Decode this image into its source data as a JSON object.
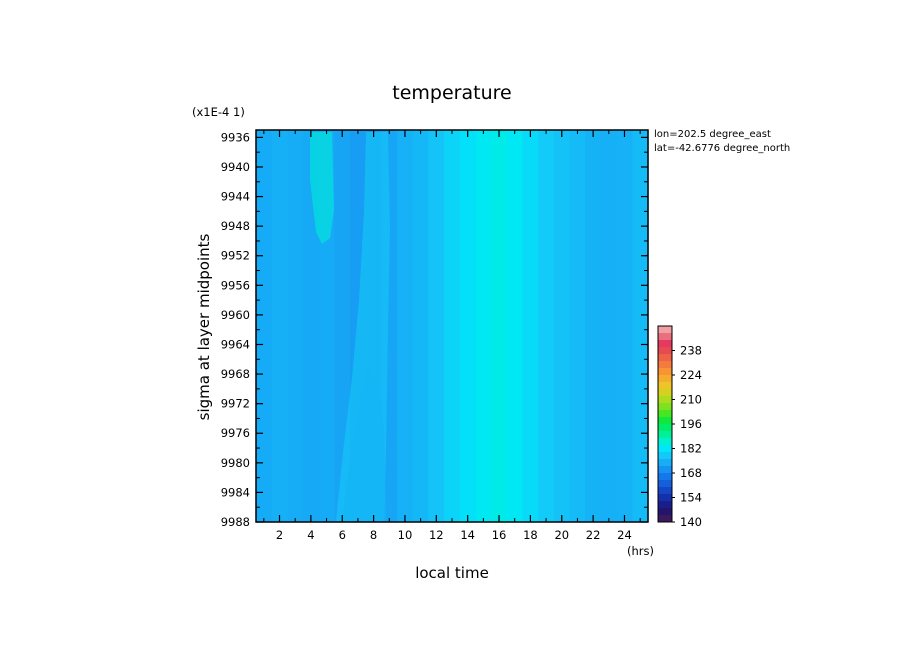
{
  "chart_data": {
    "type": "heatmap",
    "title": "temperature",
    "scale_note": "(x1E-4 1)",
    "xlabel": "local time",
    "xunit": "(hrs)",
    "ylabel": "sigma at layer midpoints",
    "x_ticks": [
      2,
      4,
      6,
      8,
      10,
      12,
      14,
      16,
      18,
      20,
      22,
      24
    ],
    "xlim": [
      0.5,
      25.5
    ],
    "y_ticks": [
      9936,
      9940,
      9944,
      9948,
      9952,
      9956,
      9960,
      9964,
      9968,
      9972,
      9976,
      9980,
      9984,
      9988
    ],
    "ylim": [
      9988,
      9935
    ],
    "annotations": [
      "lon=202.5 degree_east",
      "lat=-42.6776 degree_north"
    ],
    "colorbar": {
      "tick_labels": [
        140,
        154,
        168,
        182,
        196,
        210,
        224,
        238
      ],
      "range": [
        140,
        252
      ],
      "levels": [
        140,
        144,
        148,
        152,
        156,
        160,
        164,
        168,
        172,
        176,
        180,
        184,
        188,
        192,
        196,
        200,
        204,
        208,
        212,
        216,
        220,
        224,
        228,
        232,
        236,
        240,
        244,
        248,
        252
      ],
      "colors": [
        "#3a1a5c",
        "#24146e",
        "#1a1e8c",
        "#1430aa",
        "#1446c6",
        "#1460dc",
        "#1478ea",
        "#1892f2",
        "#16aef6",
        "#14c8f8",
        "#00e6fa",
        "#00f0d0",
        "#00f09a",
        "#00ec6a",
        "#10e83c",
        "#48e622",
        "#7ee21e",
        "#acdc1e",
        "#d4d21e",
        "#eec428",
        "#f6ac2c",
        "#f89434",
        "#f47a3e",
        "#ee6248",
        "#e84a52",
        "#e43a62",
        "#e8707e",
        "#f0a0a4"
      ]
    },
    "columns": [
      {
        "x": 1,
        "value": 171.5
      },
      {
        "x": 2,
        "value": 172.3
      },
      {
        "x": 3,
        "value": 171.9
      },
      {
        "x": 4,
        "value": 171.3
      },
      {
        "x": 5,
        "value": 171.5
      },
      {
        "x": 6,
        "value": 170.6
      },
      {
        "x": 7,
        "value": 169.6
      },
      {
        "x": 8,
        "value": 169.0
      },
      {
        "x": 9,
        "value": 170.7
      },
      {
        "x": 10,
        "value": 172.4
      },
      {
        "x": 11,
        "value": 173.6
      },
      {
        "x": 12,
        "value": 175.2
      },
      {
        "x": 13,
        "value": 177.6
      },
      {
        "x": 14,
        "value": 179.3
      },
      {
        "x": 15,
        "value": 180.8
      },
      {
        "x": 16,
        "value": 181.8
      },
      {
        "x": 17,
        "value": 180.6
      },
      {
        "x": 18,
        "value": 178.5
      },
      {
        "x": 19,
        "value": 176.4
      },
      {
        "x": 20,
        "value": 175.0
      },
      {
        "x": 21,
        "value": 174.0
      },
      {
        "x": 22,
        "value": 172.6
      },
      {
        "x": 23,
        "value": 172.3
      },
      {
        "x": 24,
        "value": 172.5
      },
      {
        "x": 25,
        "value": 174.0
      }
    ]
  }
}
